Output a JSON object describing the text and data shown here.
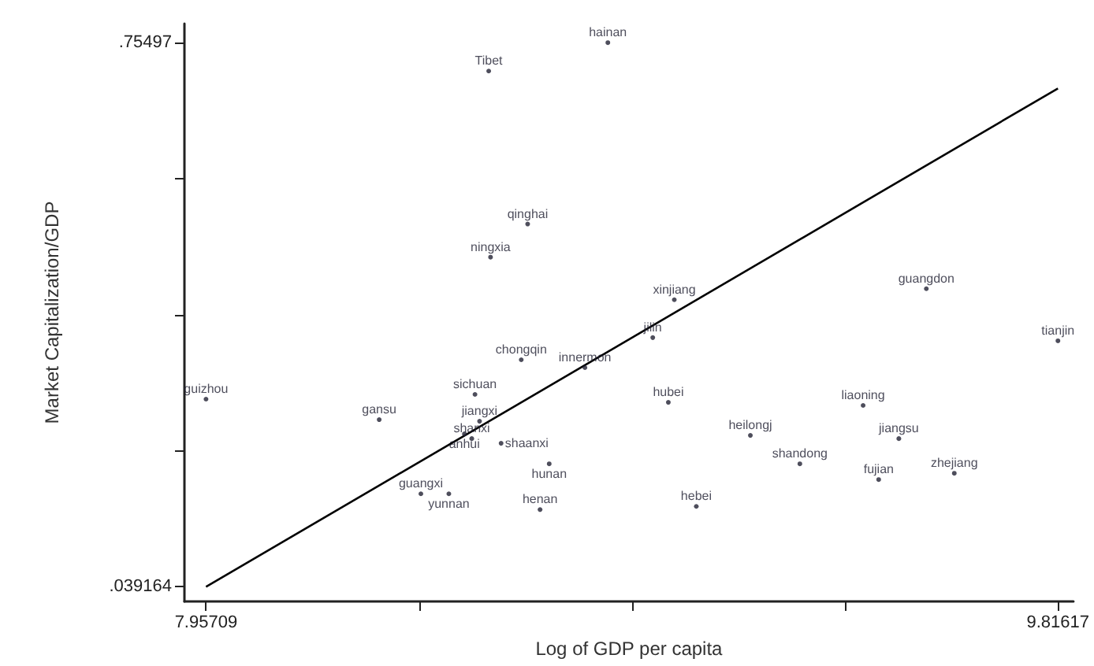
{
  "chart_data": {
    "type": "scatter",
    "xlabel": "Log of GDP per capita",
    "ylabel": "Market Capitalization/GDP",
    "xlim": [
      7.91,
      9.85
    ],
    "ylim": [
      0.02,
      0.78
    ],
    "xticks": [
      {
        "value": 7.95709,
        "label": "7.95709"
      },
      {
        "value": 8.42186,
        "label": null
      },
      {
        "value": 8.88663,
        "label": null
      },
      {
        "value": 9.3514,
        "label": null
      },
      {
        "value": 9.81617,
        "label": "9.81617"
      }
    ],
    "yticks": [
      {
        "value": 0.039164,
        "label": ".039164"
      },
      {
        "value": 0.21812,
        "label": null
      },
      {
        "value": 0.39706,
        "label": null
      },
      {
        "value": 0.57601,
        "label": null
      },
      {
        "value": 0.75497,
        "label": ".75497"
      }
    ],
    "grid": false,
    "legend": false,
    "marker": "circle",
    "series": [
      {
        "name": "hainan",
        "color": "#222233",
        "x": [
          8.834
        ],
        "values": [
          0.75497
        ]
      },
      {
        "name": "Tibet",
        "color": "#222233",
        "x": [
          8.574
        ],
        "values": [
          0.7176
        ]
      },
      {
        "name": "qinghai",
        "color": "#222233",
        "x": [
          8.659
        ],
        "values": [
          0.5164
        ]
      },
      {
        "name": "ningxia",
        "color": "#222233",
        "x": [
          8.578
        ],
        "values": [
          0.4728
        ]
      },
      {
        "name": "xinjiang",
        "color": "#222233",
        "x": [
          8.979
        ],
        "values": [
          0.4168
        ]
      },
      {
        "name": "guangdon",
        "color": "#222233",
        "x": [
          9.529
        ],
        "values": [
          0.4313
        ]
      },
      {
        "name": "tianjin",
        "color": "#222233",
        "x": [
          9.81617
        ],
        "values": [
          0.3628
        ]
      },
      {
        "name": "jilin",
        "color": "#222233",
        "x": [
          8.932
        ],
        "values": [
          0.367
        ]
      },
      {
        "name": "chongqin",
        "color": "#222233",
        "x": [
          8.645
        ],
        "values": [
          0.3379
        ]
      },
      {
        "name": "innermon",
        "color": "#222233",
        "x": [
          8.784
        ],
        "values": [
          0.3275
        ]
      },
      {
        "name": "sichuan",
        "color": "#222233",
        "x": [
          8.544
        ],
        "values": [
          0.2923
        ]
      },
      {
        "name": "guizhou",
        "color": "#222233",
        "x": [
          7.95709
        ],
        "values": [
          0.2861
        ]
      },
      {
        "name": "gansu",
        "color": "#222233",
        "x": [
          8.335
        ],
        "values": [
          0.2591
        ]
      },
      {
        "name": "jiangxi",
        "color": "#222233",
        "x": [
          8.554
        ],
        "values": [
          0.257
        ]
      },
      {
        "name": "anhui",
        "color": "#222233",
        "x": [
          8.521
        ],
        "values": [
          0.2404
        ]
      },
      {
        "name": "shanxi",
        "color": "#222233",
        "x": [
          8.537
        ],
        "values": [
          0.2342
        ]
      },
      {
        "name": "shaanxi",
        "color": "#222233",
        "x": [
          8.601
        ],
        "values": [
          0.228
        ]
      },
      {
        "name": "guangxi",
        "color": "#222233",
        "x": [
          8.426
        ],
        "values": [
          0.1616
        ]
      },
      {
        "name": "yunnan",
        "color": "#222233",
        "x": [
          8.487
        ],
        "values": [
          0.1616
        ]
      },
      {
        "name": "hunan",
        "color": "#222233",
        "x": [
          8.706
        ],
        "values": [
          0.201
        ]
      },
      {
        "name": "henan",
        "color": "#222233",
        "x": [
          8.686
        ],
        "values": [
          0.1408
        ]
      },
      {
        "name": "hubei",
        "color": "#222233",
        "x": [
          8.966
        ],
        "values": [
          0.2819
        ]
      },
      {
        "name": "hebei",
        "color": "#222233",
        "x": [
          9.027
        ],
        "values": [
          0.145
        ]
      },
      {
        "name": "heilongj",
        "color": "#222233",
        "x": [
          9.145
        ],
        "values": [
          0.2384
        ]
      },
      {
        "name": "liaoning",
        "color": "#222233",
        "x": [
          9.391
        ],
        "values": [
          0.2778
        ]
      },
      {
        "name": "shandong",
        "color": "#222233",
        "x": [
          9.253
        ],
        "values": [
          0.201
        ]
      },
      {
        "name": "jiangsu",
        "color": "#222233",
        "x": [
          9.469
        ],
        "values": [
          0.2342
        ]
      },
      {
        "name": "fujian",
        "color": "#222233",
        "x": [
          9.425
        ],
        "values": [
          0.1803
        ]
      },
      {
        "name": "zhejiang",
        "color": "#222233",
        "x": [
          9.59
        ],
        "values": [
          0.1886
        ]
      },
      {
        "type": "line",
        "marker": "none",
        "color": "#000000",
        "x": [
          7.95709,
          9.81617
        ],
        "values": [
          0.039164,
          0.6948
        ]
      }
    ]
  }
}
